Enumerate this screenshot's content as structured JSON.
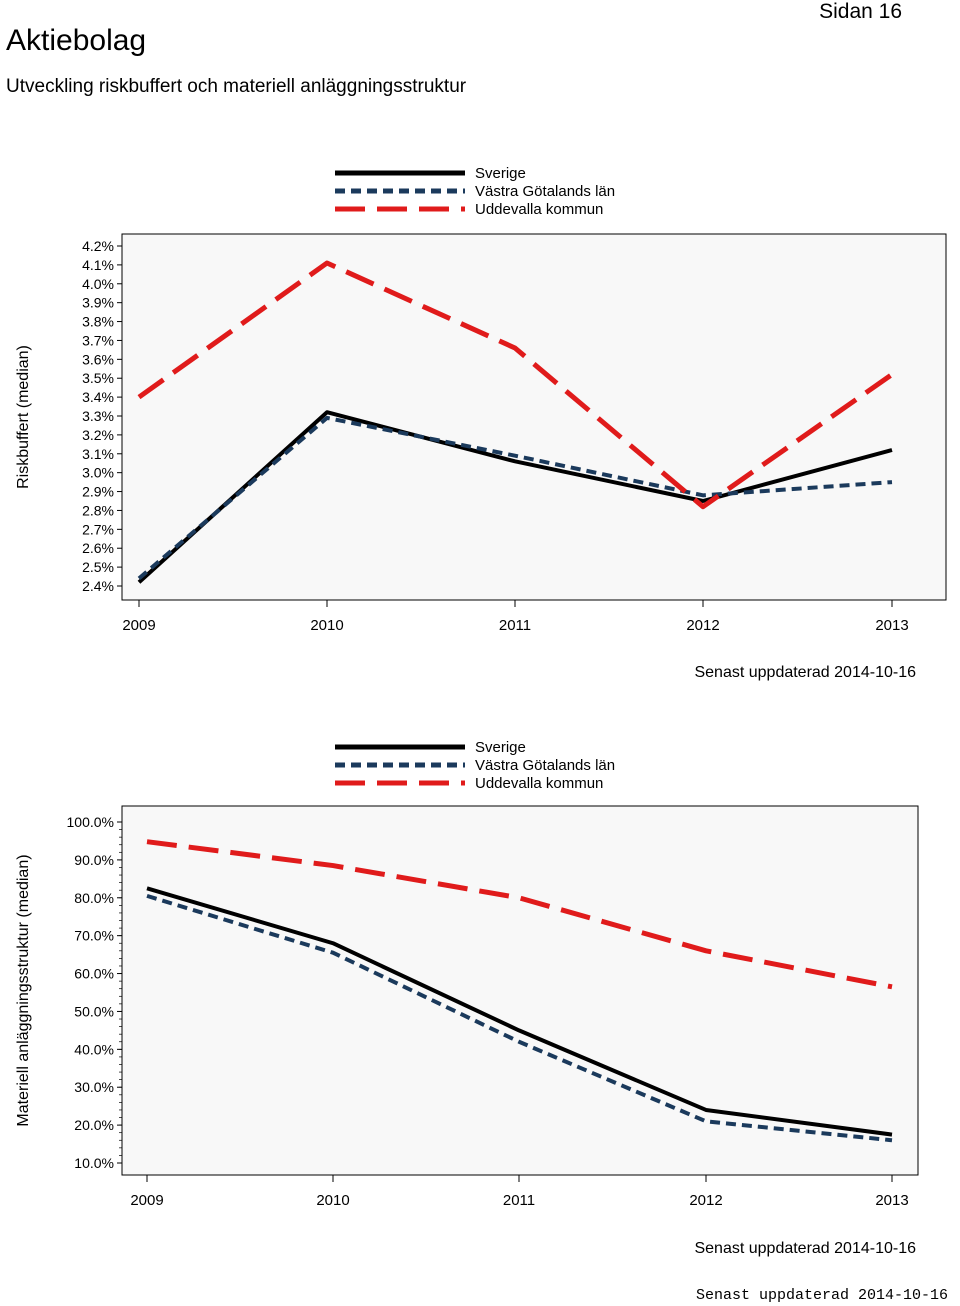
{
  "header": {
    "title": "Aktiebolag",
    "page": "Sidan 16",
    "subtitle": "Utveckling riskbuffert och materiell anläggningsstruktur"
  },
  "chart_data": [
    {
      "type": "line",
      "ylabel": "Riskbuffert (median)",
      "xlabel": "",
      "categories": [
        "2009",
        "2010",
        "2011",
        "2012",
        "2013"
      ],
      "ylim": [
        2.4,
        4.2
      ],
      "yticks": [
        "4.2%",
        "4.1%",
        "4.0%",
        "3.9%",
        "3.8%",
        "3.7%",
        "3.6%",
        "3.5%",
        "3.4%",
        "3.3%",
        "3.2%",
        "3.1%",
        "3.0%",
        "2.9%",
        "2.8%",
        "2.7%",
        "2.6%",
        "2.5%",
        "2.4%"
      ],
      "series": [
        {
          "name": "Sverige",
          "color": "#000000",
          "style": "solid",
          "values": [
            2.42,
            3.32,
            3.06,
            2.85,
            3.12
          ]
        },
        {
          "name": "Västra Götalands län",
          "color": "#1b3a5c",
          "style": "dashed",
          "values": [
            2.44,
            3.29,
            3.09,
            2.88,
            2.95
          ]
        },
        {
          "name": "Uddevalla kommun",
          "color": "#e01b1b",
          "style": "longdash",
          "values": [
            3.4,
            4.11,
            3.66,
            2.82,
            3.52
          ]
        }
      ],
      "updated": "Senast uppdaterad 2014-10-16"
    },
    {
      "type": "line",
      "ylabel": "Materiell anläggningsstruktur (median)",
      "xlabel": "",
      "categories": [
        "2009",
        "2010",
        "2011",
        "2012",
        "2013"
      ],
      "ylim": [
        10,
        100
      ],
      "yticks": [
        "100.0%",
        "90.0%",
        "80.0%",
        "70.0%",
        "60.0%",
        "50.0%",
        "40.0%",
        "30.0%",
        "20.0%",
        "10.0%"
      ],
      "series": [
        {
          "name": "Sverige",
          "color": "#000000",
          "style": "solid",
          "values": [
            82.5,
            68.0,
            45.0,
            24.0,
            17.5
          ]
        },
        {
          "name": "Västra Götalands län",
          "color": "#1b3a5c",
          "style": "dashed",
          "values": [
            80.5,
            65.5,
            42.0,
            21.0,
            16.0
          ]
        },
        {
          "name": "Uddevalla kommun",
          "color": "#e01b1b",
          "style": "longdash",
          "values": [
            94.8,
            88.5,
            80.0,
            66.0,
            56.5
          ]
        }
      ],
      "updated": "Senast uppdaterad 2014-10-16"
    }
  ],
  "footer": "Senast uppdaterad 2014-10-16"
}
